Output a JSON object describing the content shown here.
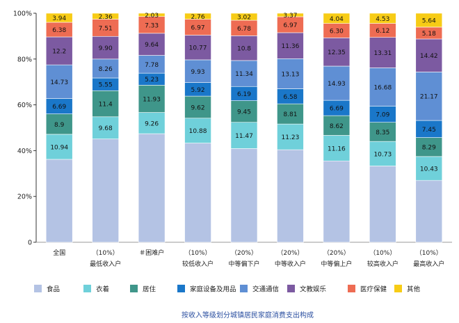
{
  "chart_data": {
    "type": "stacked_bar_100",
    "title": "按收入等级划分城镇居民家庭消费支出构成",
    "xlabel": "",
    "ylabel": "",
    "ylim": [
      0,
      100
    ],
    "yticks": [
      "0",
      "20%",
      "40%",
      "60%",
      "80%",
      "100%"
    ],
    "categories": [
      {
        "line1": "全国",
        "line2": ""
      },
      {
        "line1": "（10%）",
        "line2": "最低收入户"
      },
      {
        "line1": "＃困难户",
        "line2": ""
      },
      {
        "line1": "（10%）",
        "line2": "较低收入户"
      },
      {
        "line1": "（20%）",
        "line2": "中等偏下户"
      },
      {
        "line1": "（20%）",
        "line2": "中等收入户"
      },
      {
        "line1": "（20%）",
        "line2": "中等偏上户"
      },
      {
        "line1": "（10%）",
        "line2": "较高收入户"
      },
      {
        "line1": "（10%）",
        "line2": "最高收入户"
      }
    ],
    "series": [
      {
        "name": "食品",
        "color": "#b4c3e4",
        "values": [
          36.2,
          45.1,
          47.4,
          43.3,
          40.9,
          40.4,
          35.5,
          33.3,
          27.0
        ],
        "labels": [
          "",
          "",
          "",
          "",
          "",
          "",
          "",
          "",
          ""
        ]
      },
      {
        "name": "衣着",
        "color": "#6fd0da",
        "values": [
          10.94,
          9.68,
          9.26,
          10.88,
          11.47,
          11.23,
          11.16,
          10.73,
          10.43
        ],
        "labels": [
          "10.94",
          "9.68",
          "9.26",
          "10.88",
          "11.47",
          "11.23",
          "11.16",
          "10.73",
          "10.43"
        ]
      },
      {
        "name": "居住",
        "color": "#3f968a",
        "values": [
          8.9,
          11.4,
          11.93,
          9.62,
          9.45,
          8.81,
          8.62,
          8.35,
          8.29
        ],
        "labels": [
          "8.9",
          "11.4",
          "11.93",
          "9.62",
          "9.45",
          "8.81",
          "8.62",
          "8.35",
          "8.29"
        ]
      },
      {
        "name": "家庭设备及用品",
        "color": "#1a77c9",
        "values": [
          6.69,
          5.55,
          5.23,
          5.92,
          6.19,
          6.58,
          6.69,
          7.09,
          7.45
        ],
        "labels": [
          "6.69",
          "5.55",
          "5.23",
          "5.92",
          "6.19",
          "6.58",
          "6.69",
          "7.09",
          "7.45"
        ]
      },
      {
        "name": "交通通信",
        "color": "#5f8fd4",
        "values": [
          14.73,
          8.26,
          7.78,
          9.93,
          11.34,
          13.13,
          14.93,
          16.68,
          21.17
        ],
        "labels": [
          "14.73",
          "8.26",
          "7.78",
          "9.93",
          "11.34",
          "13.13",
          "14.93",
          "16.68",
          "21.17"
        ]
      },
      {
        "name": "文教娱乐",
        "color": "#7c5aa1",
        "values": [
          12.2,
          9.9,
          9.64,
          10.77,
          10.8,
          11.36,
          12.35,
          13.31,
          14.42
        ],
        "labels": [
          "12.2",
          "9.90",
          "9.64",
          "10.77",
          "10.8",
          "11.36",
          "12.35",
          "13.31",
          "14.42"
        ]
      },
      {
        "name": "医疗保健",
        "color": "#ee6c53",
        "values": [
          6.38,
          7.51,
          7.33,
          6.97,
          6.78,
          6.97,
          6.3,
          6.12,
          5.18
        ],
        "labels": [
          "6.38",
          "7.51",
          "7.33",
          "6.97",
          "6.78",
          "6.97",
          "6.30",
          "6.12",
          "5.18"
        ]
      },
      {
        "name": "其他",
        "color": "#f7cc16",
        "values": [
          3.94,
          2.36,
          2.03,
          2.76,
          3.02,
          3.37,
          4.04,
          4.53,
          5.64
        ],
        "labels": [
          "3.94",
          "2.36",
          "2.03",
          "2.76",
          "3.02",
          "3.37",
          "4.04",
          "4.53",
          "5.64"
        ]
      }
    ],
    "legend_position": "bottom",
    "grid": false
  }
}
